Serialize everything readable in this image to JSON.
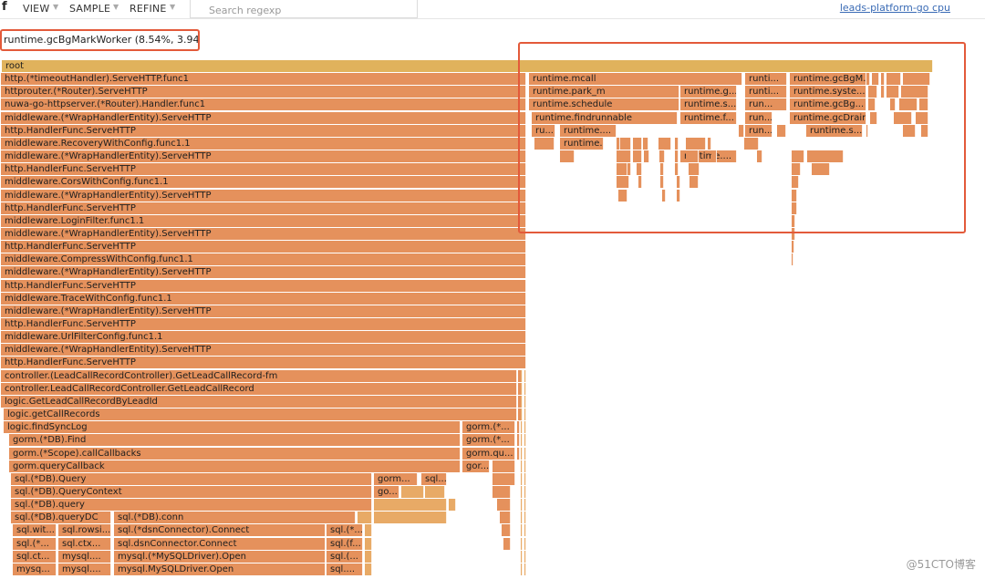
{
  "toolbar": {
    "logo": "f",
    "menus": [
      "VIEW",
      "SAMPLE",
      "REFINE"
    ],
    "search_placeholder": "Search regexp",
    "target": "leads-platform-go cpu"
  },
  "status": "runtime.gcBgMarkWorker (8.54%, 3.94s)",
  "watermark": "@51CTO博客",
  "colors": {
    "root": "#e0b25c",
    "frame": "#e5915c",
    "frame_light": "#e8aa66",
    "highlight": "#e35a3a",
    "link": "#3a6bb5"
  },
  "flamegraph": {
    "root_label": "root",
    "left_stack": [
      "http.(*timeoutHandler).ServeHTTP.func1",
      "httprouter.(*Router).ServeHTTP",
      "nuwa-go-httpserver.(*Router).Handler.func1",
      "middleware.(*WrapHandlerEntity).ServeHTTP",
      "http.HandlerFunc.ServeHTTP",
      "middleware.RecoveryWithConfig.func1.1",
      "middleware.(*WrapHandlerEntity).ServeHTTP",
      "http.HandlerFunc.ServeHTTP",
      "middleware.CorsWithConfig.func1.1",
      "middleware.(*WrapHandlerEntity).ServeHTTP",
      "http.HandlerFunc.ServeHTTP",
      "middleware.LoginFilter.func1.1",
      "middleware.(*WrapHandlerEntity).ServeHTTP",
      "http.HandlerFunc.ServeHTTP",
      "middleware.CompressWithConfig.func1.1",
      "middleware.(*WrapHandlerEntity).ServeHTTP",
      "http.HandlerFunc.ServeHTTP",
      "middleware.TraceWithConfig.func1.1",
      "middleware.(*WrapHandlerEntity).ServeHTTP",
      "http.HandlerFunc.ServeHTTP",
      "middleware.UrlFilterConfig.func1.1",
      "middleware.(*WrapHandlerEntity).ServeHTTP",
      "http.HandlerFunc.ServeHTTP",
      "controller.(LeadCallRecordController).GetLeadCallRecord-fm",
      "controller.LeadCallRecordController.GetLeadCallRecord",
      "logic.GetLeadCallRecordByLeadId",
      "logic.getCallRecords",
      "logic.findSyncLog",
      "gorm.(*DB).Find",
      "gorm.(*Scope).callCallbacks",
      "gorm.queryCallback",
      "sql.(*DB).Query",
      "sql.(*DB).QueryContext",
      "sql.(*DB).query",
      "sql.(*DB).queryDC",
      "sql.wit...",
      "sql.(*...",
      "sql.ct...",
      "mysq..."
    ],
    "small_frames": [
      "gorm.(*...",
      "gorm.(*...",
      "gorm.qu...",
      "gor...",
      "gorm...",
      "sql...",
      "go...",
      "sql.(*DB).conn",
      "sql.rowsi...",
      "sql.(*dsnConnector).Connect",
      "sql.(*...",
      "sql.ctx...",
      "sql.dsnConnector.Connect",
      "sql.(f...",
      "mysql....",
      "mysql.(*MySQLDriver).Open",
      "sql.(...",
      "mysql....",
      "mysql.MySQLDriver.Open",
      "sql...."
    ],
    "right_frames": [
      "runtime.mcall",
      "runtime.park_m",
      "runtime.schedule",
      "runtime.findrunnable",
      "ru...",
      "runtime....",
      "runtime...",
      "runtime....",
      "runtime.g...",
      "runtime.s...",
      "runtime.f...",
      "runti...",
      "runti...",
      "run...",
      "run...",
      "run...",
      "runtime.gcBgM...",
      "runtime.syste...",
      "runtime.gcBg...",
      "runtime.gcDrain",
      "runtime.s..."
    ]
  }
}
